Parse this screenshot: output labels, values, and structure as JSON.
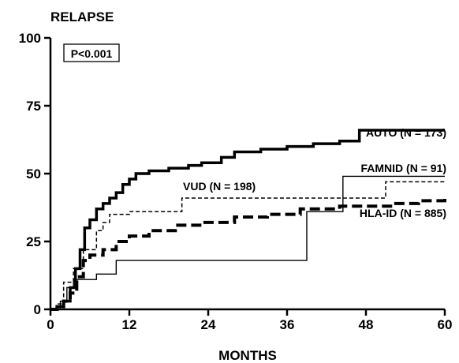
{
  "chart_data": {
    "type": "line",
    "step": true,
    "title": "RELAPSE",
    "xlabel": "MONTHS",
    "ylabel": "",
    "xlim": [
      0,
      60
    ],
    "ylim": [
      0,
      100
    ],
    "xticks": [
      0,
      12,
      24,
      36,
      48,
      60
    ],
    "yticks": [
      0,
      25,
      50,
      75,
      100
    ],
    "grid": false,
    "annotation": "P<0.001",
    "series": [
      {
        "name": "AUTO (N = 173)",
        "style": "thick-solid",
        "points": [
          [
            0,
            0
          ],
          [
            1,
            1
          ],
          [
            2,
            3
          ],
          [
            3,
            8
          ],
          [
            3.8,
            15
          ],
          [
            4.5,
            22
          ],
          [
            5.2,
            30
          ],
          [
            6,
            33
          ],
          [
            7,
            37
          ],
          [
            8,
            39
          ],
          [
            9,
            41
          ],
          [
            10,
            43
          ],
          [
            11,
            46
          ],
          [
            12,
            48
          ],
          [
            13,
            50
          ],
          [
            15,
            51
          ],
          [
            18,
            52
          ],
          [
            21,
            53
          ],
          [
            23,
            54
          ],
          [
            26,
            56
          ],
          [
            28,
            58
          ],
          [
            32,
            59
          ],
          [
            36,
            60
          ],
          [
            40,
            61
          ],
          [
            44,
            62
          ],
          [
            47,
            66
          ],
          [
            60,
            66
          ]
        ]
      },
      {
        "name": "FAMNID (N = 91)",
        "style": "thin-solid",
        "points": [
          [
            0,
            0
          ],
          [
            1.5,
            3
          ],
          [
            2.5,
            8
          ],
          [
            3.5,
            11
          ],
          [
            7,
            13
          ],
          [
            10,
            18
          ],
          [
            39,
            18
          ],
          [
            39,
            36
          ],
          [
            44.5,
            49
          ],
          [
            60,
            49
          ]
        ]
      },
      {
        "name": "VUD (N = 198)",
        "style": "short-dash",
        "points": [
          [
            0,
            0
          ],
          [
            1,
            2
          ],
          [
            2,
            10
          ],
          [
            3.5,
            15
          ],
          [
            5,
            22
          ],
          [
            7,
            29
          ],
          [
            8,
            32
          ],
          [
            9,
            35
          ],
          [
            12,
            36
          ],
          [
            20,
            41
          ],
          [
            44,
            41
          ],
          [
            51,
            47
          ],
          [
            60,
            47
          ]
        ]
      },
      {
        "name": "HLA-ID (N = 885)",
        "style": "thick-dash",
        "points": [
          [
            0,
            0
          ],
          [
            1,
            1
          ],
          [
            2,
            3
          ],
          [
            3,
            6
          ],
          [
            4,
            12
          ],
          [
            5,
            18
          ],
          [
            6,
            20
          ],
          [
            8,
            22
          ],
          [
            10,
            25
          ],
          [
            12,
            27
          ],
          [
            15,
            29
          ],
          [
            19,
            31
          ],
          [
            23,
            32
          ],
          [
            28,
            34
          ],
          [
            33,
            35
          ],
          [
            38,
            37
          ],
          [
            44,
            38
          ],
          [
            48,
            38
          ],
          [
            52,
            39
          ],
          [
            56,
            40
          ],
          [
            60,
            41
          ]
        ]
      }
    ]
  }
}
